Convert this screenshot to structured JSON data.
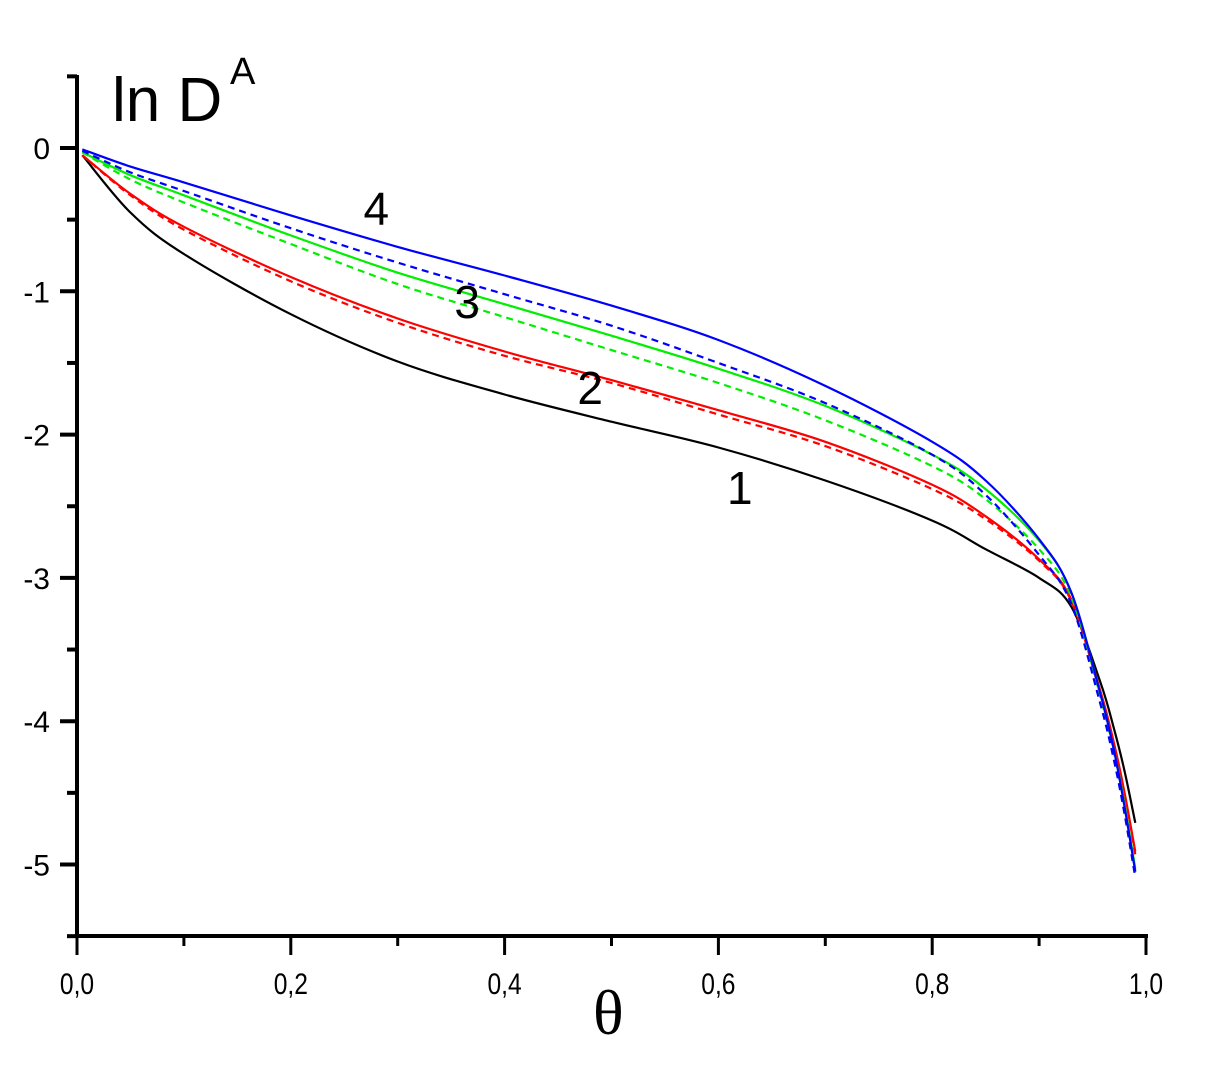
{
  "chart_data": {
    "type": "line",
    "title": "",
    "xlabel": "θ",
    "ylabel": "ln D",
    "ylabel_superscript": "A",
    "xlim": [
      0.0,
      1.0
    ],
    "ylim": [
      -5.5,
      0.5
    ],
    "grid": false,
    "legend": "none (curves labeled inline 1–4)",
    "x_ticks": [
      "0,0",
      "0,2",
      "0,4",
      "0,6",
      "0,8",
      "1,0"
    ],
    "x_tick_values": [
      0.0,
      0.2,
      0.4,
      0.6,
      0.8,
      1.0
    ],
    "x_minor_ticks": [
      0.1,
      0.3,
      0.5,
      0.7,
      0.9
    ],
    "y_ticks": [
      "0",
      "-1",
      "-2",
      "-3",
      "-4",
      "-5"
    ],
    "y_tick_values": [
      0,
      -1,
      -2,
      -3,
      -4,
      -5
    ],
    "y_minor_ticks": [
      0.5,
      -0.5,
      -1.5,
      -2.5,
      -3.5,
      -4.5,
      -5.5
    ],
    "curve_labels": [
      {
        "text": "1",
        "x": 0.62,
        "y": -2.4
      },
      {
        "text": "2",
        "x": 0.48,
        "y": -1.7
      },
      {
        "text": "3",
        "x": 0.365,
        "y": -1.1
      },
      {
        "text": "4",
        "x": 0.28,
        "y": -0.45
      }
    ],
    "series": [
      {
        "name": "1",
        "color": "#000000",
        "style": "solid",
        "x": [
          0.005,
          0.05,
          0.1,
          0.2,
          0.3,
          0.4,
          0.5,
          0.6,
          0.7,
          0.8,
          0.85,
          0.9,
          0.93,
          0.957,
          0.97,
          0.98,
          0.99
        ],
        "y": [
          -0.05,
          -0.45,
          -0.74,
          -1.16,
          -1.49,
          -1.72,
          -1.91,
          -2.09,
          -2.32,
          -2.6,
          -2.8,
          -3.0,
          -3.2,
          -3.72,
          -4.05,
          -4.35,
          -4.71
        ]
      },
      {
        "name": "2",
        "color": "#ff0000",
        "style": "solid",
        "x": [
          0.005,
          0.05,
          0.1,
          0.2,
          0.3,
          0.4,
          0.5,
          0.6,
          0.7,
          0.8,
          0.85,
          0.9,
          0.93,
          0.957,
          0.97,
          0.98,
          0.99
        ],
        "y": [
          -0.05,
          -0.32,
          -0.55,
          -0.9,
          -1.19,
          -1.42,
          -1.62,
          -1.83,
          -2.05,
          -2.35,
          -2.57,
          -2.87,
          -3.15,
          -3.78,
          -4.15,
          -4.5,
          -4.91
        ]
      },
      {
        "name": "2 (dashed)",
        "color": "#ff0000",
        "style": "dashed",
        "x": [
          0.005,
          0.05,
          0.1,
          0.2,
          0.3,
          0.4,
          0.5,
          0.6,
          0.7,
          0.8,
          0.85,
          0.9,
          0.93,
          0.957,
          0.97,
          0.98,
          0.99
        ],
        "y": [
          -0.05,
          -0.33,
          -0.57,
          -0.93,
          -1.22,
          -1.45,
          -1.64,
          -1.86,
          -2.08,
          -2.38,
          -2.59,
          -2.88,
          -3.16,
          -3.8,
          -4.17,
          -4.52,
          -4.93
        ]
      },
      {
        "name": "3",
        "color": "#00ee00",
        "style": "solid",
        "x": [
          0.005,
          0.05,
          0.1,
          0.2,
          0.3,
          0.4,
          0.5,
          0.6,
          0.7,
          0.8,
          0.85,
          0.9,
          0.93,
          0.957,
          0.97,
          0.98,
          0.99
        ],
        "y": [
          -0.03,
          -0.19,
          -0.33,
          -0.61,
          -0.87,
          -1.09,
          -1.31,
          -1.54,
          -1.8,
          -2.14,
          -2.38,
          -2.74,
          -3.1,
          -3.8,
          -4.2,
          -4.58,
          -5.03
        ]
      },
      {
        "name": "3 (dashed)",
        "color": "#00ee00",
        "style": "dashed",
        "x": [
          0.005,
          0.05,
          0.1,
          0.2,
          0.3,
          0.4,
          0.5,
          0.6,
          0.7,
          0.8,
          0.85,
          0.9,
          0.93,
          0.957,
          0.97,
          0.98,
          0.99
        ],
        "y": [
          -0.03,
          -0.22,
          -0.38,
          -0.67,
          -0.95,
          -1.18,
          -1.41,
          -1.64,
          -1.9,
          -2.22,
          -2.45,
          -2.8,
          -3.13,
          -3.82,
          -4.22,
          -4.6,
          -5.05
        ]
      },
      {
        "name": "4",
        "color": "#0000ff",
        "style": "solid",
        "x": [
          0.005,
          0.05,
          0.1,
          0.2,
          0.3,
          0.4,
          0.5,
          0.6,
          0.7,
          0.8,
          0.85,
          0.9,
          0.93,
          0.957,
          0.97,
          0.98,
          0.99
        ],
        "y": [
          -0.01,
          -0.13,
          -0.24,
          -0.47,
          -0.69,
          -0.89,
          -1.1,
          -1.34,
          -1.66,
          -2.05,
          -2.32,
          -2.73,
          -3.1,
          -3.8,
          -4.2,
          -4.6,
          -5.05
        ]
      },
      {
        "name": "4 (dashed)",
        "color": "#0000ff",
        "style": "dashed",
        "x": [
          0.005,
          0.05,
          0.1,
          0.2,
          0.3,
          0.4,
          0.5,
          0.6,
          0.7,
          0.8,
          0.85,
          0.9,
          0.93,
          0.957,
          0.97,
          0.98,
          0.99
        ],
        "y": [
          -0.02,
          -0.17,
          -0.3,
          -0.56,
          -0.8,
          -1.02,
          -1.24,
          -1.5,
          -1.78,
          -2.14,
          -2.42,
          -2.84,
          -3.18,
          -3.87,
          -4.27,
          -4.65,
          -5.09
        ]
      }
    ]
  }
}
